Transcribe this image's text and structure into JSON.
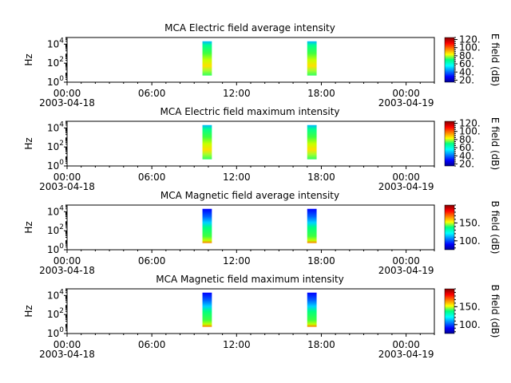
{
  "chart_data": [
    {
      "type": "heatmap",
      "title": "MCA  Electric field average intensity",
      "ylabel": "Hz",
      "yscale": "log",
      "ylim": [
        1,
        50000
      ],
      "y_ticks": [
        {
          "base": "10",
          "exp": "0"
        },
        {
          "base": "10",
          "exp": "2"
        },
        {
          "base": "10",
          "exp": "4"
        }
      ],
      "x_ticks": [
        {
          "time": "00:00",
          "date": "2003-04-18"
        },
        {
          "time": "06:00",
          "date": ""
        },
        {
          "time": "12:00",
          "date": ""
        },
        {
          "time": "18:00",
          "date": ""
        },
        {
          "time": "00:00",
          "date": "2003-04-19"
        }
      ],
      "xlim": [
        "2003-04-18 00:00",
        "2003-04-19 02:00"
      ],
      "colorbar": {
        "label": "E field (dB)",
        "ticks": [
          "20.",
          "40.",
          "60.",
          "80.",
          "100.",
          "120."
        ],
        "range": [
          15,
          125
        ]
      },
      "data_intervals": [
        {
          "start": "2003-04-18 09:35",
          "end": "2003-04-18 10:15",
          "freq_range": [
            5,
            20000
          ]
        },
        {
          "start": "2003-04-18 17:00",
          "end": "2003-04-18 17:40",
          "freq_range": [
            5,
            20000
          ]
        }
      ]
    },
    {
      "type": "heatmap",
      "title": "MCA  Electric field maximum intensity",
      "ylabel": "Hz",
      "yscale": "log",
      "ylim": [
        1,
        50000
      ],
      "y_ticks": [
        {
          "base": "10",
          "exp": "0"
        },
        {
          "base": "10",
          "exp": "2"
        },
        {
          "base": "10",
          "exp": "4"
        }
      ],
      "x_ticks": [
        {
          "time": "00:00",
          "date": "2003-04-18"
        },
        {
          "time": "06:00",
          "date": ""
        },
        {
          "time": "12:00",
          "date": ""
        },
        {
          "time": "18:00",
          "date": ""
        },
        {
          "time": "00:00",
          "date": "2003-04-19"
        }
      ],
      "xlim": [
        "2003-04-18 00:00",
        "2003-04-19 02:00"
      ],
      "colorbar": {
        "label": "E field (dB)",
        "ticks": [
          "20.",
          "40.",
          "60.",
          "80.",
          "100.",
          "120."
        ],
        "range": [
          15,
          125
        ]
      },
      "data_intervals": [
        {
          "start": "2003-04-18 09:35",
          "end": "2003-04-18 10:15",
          "freq_range": [
            5,
            20000
          ]
        },
        {
          "start": "2003-04-18 17:00",
          "end": "2003-04-18 17:40",
          "freq_range": [
            5,
            20000
          ]
        }
      ]
    },
    {
      "type": "heatmap",
      "title": "MCA  Magnetic field average intensity",
      "ylabel": "Hz",
      "yscale": "log",
      "ylim": [
        1,
        50000
      ],
      "y_ticks": [
        {
          "base": "10",
          "exp": "0"
        },
        {
          "base": "10",
          "exp": "2"
        },
        {
          "base": "10",
          "exp": "4"
        }
      ],
      "x_ticks": [
        {
          "time": "00:00",
          "date": "2003-04-18"
        },
        {
          "time": "06:00",
          "date": ""
        },
        {
          "time": "12:00",
          "date": ""
        },
        {
          "time": "18:00",
          "date": ""
        },
        {
          "time": "00:00",
          "date": "2003-04-19"
        }
      ],
      "xlim": [
        "2003-04-18 00:00",
        "2003-04-19 02:00"
      ],
      "colorbar": {
        "label": "B field (dB)",
        "ticks": [
          "100.",
          "150."
        ],
        "range": [
          75,
          200
        ]
      },
      "data_intervals": [
        {
          "start": "2003-04-18 09:35",
          "end": "2003-04-18 10:15",
          "freq_range": [
            5,
            20000
          ]
        },
        {
          "start": "2003-04-18 17:00",
          "end": "2003-04-18 17:40",
          "freq_range": [
            5,
            20000
          ]
        }
      ]
    },
    {
      "type": "heatmap",
      "title": "MCA  Magnetic field maximum intensity",
      "ylabel": "Hz",
      "yscale": "log",
      "ylim": [
        1,
        50000
      ],
      "y_ticks": [
        {
          "base": "10",
          "exp": "0"
        },
        {
          "base": "10",
          "exp": "2"
        },
        {
          "base": "10",
          "exp": "4"
        }
      ],
      "x_ticks": [
        {
          "time": "00:00",
          "date": "2003-04-18"
        },
        {
          "time": "06:00",
          "date": ""
        },
        {
          "time": "12:00",
          "date": ""
        },
        {
          "time": "18:00",
          "date": ""
        },
        {
          "time": "00:00",
          "date": "2003-04-19"
        }
      ],
      "xlim": [
        "2003-04-18 00:00",
        "2003-04-19 02:00"
      ],
      "colorbar": {
        "label": "B field (dB)",
        "ticks": [
          "100.",
          "150."
        ],
        "range": [
          75,
          200
        ]
      },
      "data_intervals": [
        {
          "start": "2003-04-18 09:35",
          "end": "2003-04-18 10:15",
          "freq_range": [
            5,
            20000
          ]
        },
        {
          "start": "2003-04-18 17:00",
          "end": "2003-04-18 17:40",
          "freq_range": [
            5,
            20000
          ]
        }
      ]
    }
  ]
}
